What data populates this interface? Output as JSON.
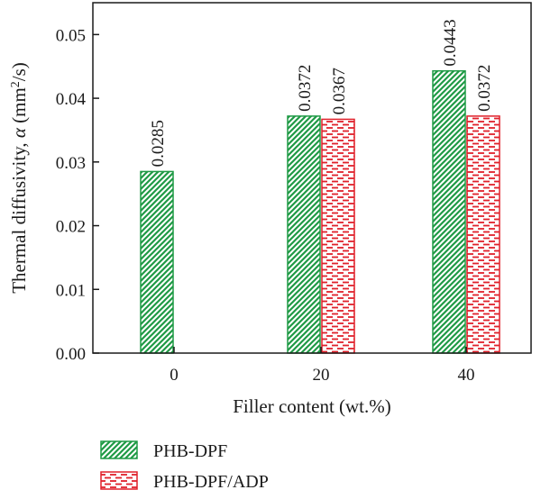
{
  "chart_data": {
    "type": "bar",
    "categories": [
      "0",
      "20",
      "40"
    ],
    "series": [
      {
        "name": "PHB-DPF",
        "values": [
          0.0285,
          0.0372,
          0.0443
        ],
        "labels": [
          "0.0285",
          "0.0372",
          "0.0443"
        ],
        "color": "#1f9a45",
        "pattern": "diagonal-hatch"
      },
      {
        "name": "PHB-DPF/ADP",
        "values": [
          null,
          0.0367,
          0.0372
        ],
        "labels": [
          "",
          "0.0367",
          "0.0372"
        ],
        "color": "#e0202a",
        "pattern": "dashed-horizontal"
      }
    ],
    "xlabel": "Filler content (wt.%)",
    "ylabel_parts": {
      "main": "Thermal diffusivity, ",
      "symbol": "α",
      "unit_open": " (mm",
      "unit_sup": "2",
      "unit_close": "/s)"
    },
    "ylim": [
      0,
      0.055
    ],
    "yticks": [
      "0.00",
      "0.01",
      "0.02",
      "0.03",
      "0.04",
      "0.05"
    ],
    "ytick_values": [
      0,
      0.01,
      0.02,
      0.03,
      0.04,
      0.05
    ],
    "grid": false,
    "legend_position": "bottom-left, below plot"
  }
}
